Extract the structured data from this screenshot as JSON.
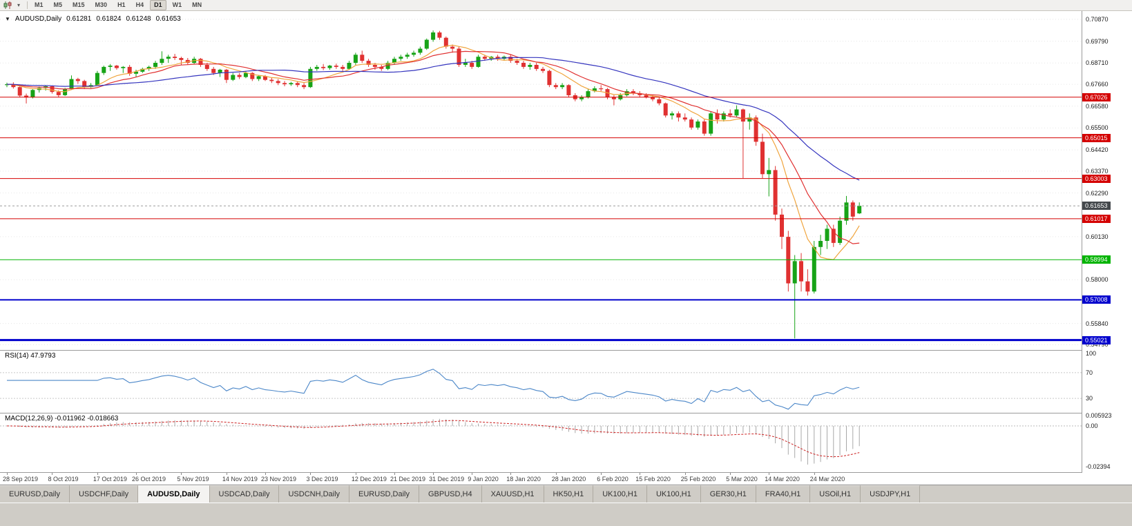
{
  "toolbar": {
    "timeframes": [
      "M1",
      "M5",
      "M15",
      "M30",
      "H1",
      "H4",
      "D1",
      "W1",
      "MN"
    ],
    "active_timeframe": "D1"
  },
  "chart": {
    "symbol_label": "AUDUSD,Daily",
    "ohlc": {
      "open": "0.61281",
      "high": "0.61824",
      "low": "0.61248",
      "close": "0.61653"
    }
  },
  "chart_data": {
    "type": "candlestick",
    "symbol": "AUDUSD",
    "timeframe": "Daily",
    "title": "AUDUSD,Daily 0.61281 0.61824 0.61248 0.61653",
    "price_range": {
      "top": 0.71279,
      "bottom": 0.54531
    },
    "y_ticks": [
      "0.70870",
      "0.69790",
      "0.68710",
      "0.67660",
      "0.66580",
      "0.65500",
      "0.64420",
      "0.63370",
      "0.62290",
      "0.60130",
      "0.58000",
      "0.55840",
      "0.54790"
    ],
    "current_price": {
      "value": 0.61653,
      "label": "0.61653",
      "color": "#44484c"
    },
    "hlines": [
      {
        "price": 0.67026,
        "label": "0.67026",
        "color": "#d40000",
        "width": 1
      },
      {
        "price": 0.65015,
        "label": "0.65015",
        "color": "#d40000",
        "width": 1
      },
      {
        "price": 0.63003,
        "label": "0.63003",
        "color": "#d40000",
        "width": 1
      },
      {
        "price": 0.61017,
        "label": "0.61017",
        "color": "#d40000",
        "width": 1
      },
      {
        "price": 0.58994,
        "label": "0.58994",
        "color": "#00b400",
        "width": 1
      },
      {
        "price": 0.57008,
        "label": "0.57008",
        "color": "#0000cd",
        "width": 2
      },
      {
        "price": 0.55021,
        "label": "0.55021",
        "color": "#0000cd",
        "width": 3
      }
    ],
    "date_labels": [
      {
        "label": "28 Sep 2019",
        "i": 0
      },
      {
        "label": "8 Oct 2019",
        "i": 7
      },
      {
        "label": "17 Oct 2019",
        "i": 14
      },
      {
        "label": "26 Oct 2019",
        "i": 20
      },
      {
        "label": "5 Nov 2019",
        "i": 27
      },
      {
        "label": "14 Nov 2019",
        "i": 34
      },
      {
        "label": "23 Nov 2019",
        "i": 40
      },
      {
        "label": "3 Dec 2019",
        "i": 47
      },
      {
        "label": "12 Dec 2019",
        "i": 54
      },
      {
        "label": "21 Dec 2019",
        "i": 60
      },
      {
        "label": "31 Dec 2019",
        "i": 66
      },
      {
        "label": "9 Jan 2020",
        "i": 72
      },
      {
        "label": "18 Jan 2020",
        "i": 78
      },
      {
        "label": "28 Jan 2020",
        "i": 85
      },
      {
        "label": "6 Feb 2020",
        "i": 92
      },
      {
        "label": "15 Feb 2020",
        "i": 98
      },
      {
        "label": "25 Feb 2020",
        "i": 105
      },
      {
        "label": "5 Mar 2020",
        "i": 112
      },
      {
        "label": "14 Mar 2020",
        "i": 118
      },
      {
        "label": "24 Mar 2020",
        "i": 125
      }
    ],
    "candles": [
      [
        0.6762,
        0.6774,
        0.6752,
        0.6766
      ],
      [
        0.6766,
        0.6776,
        0.6745,
        0.6752
      ],
      [
        0.6752,
        0.6758,
        0.6702,
        0.671
      ],
      [
        0.671,
        0.672,
        0.6671,
        0.6701
      ],
      [
        0.6701,
        0.6742,
        0.6696,
        0.6738
      ],
      [
        0.6738,
        0.6755,
        0.6725,
        0.6748
      ],
      [
        0.6748,
        0.6762,
        0.6735,
        0.6756
      ],
      [
        0.6756,
        0.676,
        0.672,
        0.6728
      ],
      [
        0.6728,
        0.6736,
        0.6702,
        0.6712
      ],
      [
        0.6712,
        0.6748,
        0.6708,
        0.6742
      ],
      [
        0.6742,
        0.681,
        0.6738,
        0.6792
      ],
      [
        0.6792,
        0.6798,
        0.6768,
        0.6782
      ],
      [
        0.6782,
        0.6788,
        0.6742,
        0.6752
      ],
      [
        0.6752,
        0.6772,
        0.6748,
        0.6762
      ],
      [
        0.6762,
        0.6832,
        0.6758,
        0.6822
      ],
      [
        0.6822,
        0.6858,
        0.6812,
        0.6852
      ],
      [
        0.6852,
        0.6866,
        0.6832,
        0.6858
      ],
      [
        0.6858,
        0.6862,
        0.6838,
        0.6846
      ],
      [
        0.6846,
        0.6856,
        0.6822,
        0.6852
      ],
      [
        0.6852,
        0.6862,
        0.6808,
        0.6818
      ],
      [
        0.6818,
        0.6838,
        0.6802,
        0.6828
      ],
      [
        0.6828,
        0.6848,
        0.6822,
        0.6842
      ],
      [
        0.6842,
        0.6858,
        0.6832,
        0.6852
      ],
      [
        0.6852,
        0.6882,
        0.6842,
        0.6872
      ],
      [
        0.6872,
        0.6929,
        0.6862,
        0.6892
      ],
      [
        0.6892,
        0.6912,
        0.6872,
        0.6902
      ],
      [
        0.6902,
        0.6916,
        0.6886,
        0.6896
      ],
      [
        0.6896,
        0.6902,
        0.6862,
        0.6886
      ],
      [
        0.6886,
        0.6896,
        0.6862,
        0.6872
      ],
      [
        0.6872,
        0.6902,
        0.6866,
        0.6892
      ],
      [
        0.6892,
        0.6896,
        0.6852,
        0.6862
      ],
      [
        0.6862,
        0.6872,
        0.6832,
        0.6842
      ],
      [
        0.6842,
        0.6852,
        0.6812,
        0.6822
      ],
      [
        0.6822,
        0.6842,
        0.6802,
        0.6838
      ],
      [
        0.6838,
        0.6842,
        0.6772,
        0.6788
      ],
      [
        0.6788,
        0.6822,
        0.6782,
        0.6812
      ],
      [
        0.6812,
        0.6822,
        0.6792,
        0.6802
      ],
      [
        0.6802,
        0.6832,
        0.6796,
        0.6822
      ],
      [
        0.6822,
        0.6826,
        0.6782,
        0.6792
      ],
      [
        0.6792,
        0.6812,
        0.6782,
        0.6806
      ],
      [
        0.6806,
        0.6812,
        0.6782,
        0.6788
      ],
      [
        0.6788,
        0.6798,
        0.6772,
        0.6782
      ],
      [
        0.6782,
        0.6792,
        0.6762,
        0.6772
      ],
      [
        0.6772,
        0.6782,
        0.6756,
        0.6766
      ],
      [
        0.6766,
        0.6778,
        0.6758,
        0.6772
      ],
      [
        0.6772,
        0.6782,
        0.6752,
        0.6762
      ],
      [
        0.6762,
        0.6772,
        0.6742,
        0.6752
      ],
      [
        0.6752,
        0.6852,
        0.6748,
        0.6842
      ],
      [
        0.6842,
        0.6862,
        0.6832,
        0.6852
      ],
      [
        0.6852,
        0.6866,
        0.6836,
        0.6846
      ],
      [
        0.6846,
        0.6862,
        0.6838,
        0.6858
      ],
      [
        0.6858,
        0.6868,
        0.6842,
        0.6852
      ],
      [
        0.6852,
        0.6862,
        0.6832,
        0.6842
      ],
      [
        0.6842,
        0.6882,
        0.6838,
        0.6872
      ],
      [
        0.6872,
        0.6922,
        0.6862,
        0.6912
      ],
      [
        0.6912,
        0.6932,
        0.6872,
        0.6882
      ],
      [
        0.6882,
        0.6892,
        0.6852,
        0.6862
      ],
      [
        0.6862,
        0.6872,
        0.6838,
        0.6852
      ],
      [
        0.6852,
        0.6862,
        0.6832,
        0.6842
      ],
      [
        0.6842,
        0.6882,
        0.6836,
        0.6872
      ],
      [
        0.6872,
        0.6902,
        0.6862,
        0.6892
      ],
      [
        0.6892,
        0.6912,
        0.6882,
        0.6902
      ],
      [
        0.6902,
        0.6922,
        0.6892,
        0.6912
      ],
      [
        0.6912,
        0.6932,
        0.6902,
        0.6922
      ],
      [
        0.6922,
        0.6952,
        0.6912,
        0.6942
      ],
      [
        0.6942,
        0.6992,
        0.6936,
        0.6986
      ],
      [
        0.6986,
        0.7032,
        0.6976,
        0.7022
      ],
      [
        0.7022,
        0.703,
        0.6986,
        0.6996
      ],
      [
        0.6996,
        0.7002,
        0.6942,
        0.6952
      ],
      [
        0.6952,
        0.6962,
        0.6922,
        0.6942
      ],
      [
        0.6942,
        0.6952,
        0.6852,
        0.6862
      ],
      [
        0.6862,
        0.6892,
        0.6852,
        0.6872
      ],
      [
        0.6872,
        0.6882,
        0.6842,
        0.6852
      ],
      [
        0.6852,
        0.6912,
        0.6848,
        0.6902
      ],
      [
        0.6902,
        0.6912,
        0.6882,
        0.6892
      ],
      [
        0.6892,
        0.6906,
        0.6882,
        0.6902
      ],
      [
        0.6902,
        0.6912,
        0.6882,
        0.6892
      ],
      [
        0.6892,
        0.6908,
        0.6886,
        0.6902
      ],
      [
        0.6902,
        0.6912,
        0.6872,
        0.6882
      ],
      [
        0.6882,
        0.6892,
        0.6862,
        0.6872
      ],
      [
        0.6872,
        0.6882,
        0.6842,
        0.6852
      ],
      [
        0.6852,
        0.6872,
        0.6838,
        0.6862
      ],
      [
        0.6862,
        0.6872,
        0.6832,
        0.6842
      ],
      [
        0.6842,
        0.6852,
        0.6822,
        0.6832
      ],
      [
        0.6832,
        0.6838,
        0.6752,
        0.6762
      ],
      [
        0.6762,
        0.6772,
        0.6742,
        0.6752
      ],
      [
        0.6752,
        0.6772,
        0.6742,
        0.6762
      ],
      [
        0.6762,
        0.6766,
        0.6702,
        0.6712
      ],
      [
        0.6712,
        0.6722,
        0.6682,
        0.6692
      ],
      [
        0.6692,
        0.6712,
        0.6682,
        0.6702
      ],
      [
        0.6702,
        0.6742,
        0.6696,
        0.6732
      ],
      [
        0.6732,
        0.6756,
        0.6726,
        0.6746
      ],
      [
        0.6746,
        0.6762,
        0.6732,
        0.6742
      ],
      [
        0.6742,
        0.6748,
        0.6692,
        0.6702
      ],
      [
        0.6702,
        0.6712,
        0.6662,
        0.6692
      ],
      [
        0.6692,
        0.6722,
        0.6686,
        0.6712
      ],
      [
        0.6712,
        0.6742,
        0.6706,
        0.6732
      ],
      [
        0.6732,
        0.6742,
        0.6712,
        0.6722
      ],
      [
        0.6722,
        0.6732,
        0.6702,
        0.6712
      ],
      [
        0.6712,
        0.6722,
        0.6696,
        0.6702
      ],
      [
        0.6702,
        0.6712,
        0.6682,
        0.6692
      ],
      [
        0.6692,
        0.6702,
        0.6662,
        0.6672
      ],
      [
        0.6672,
        0.6676,
        0.6602,
        0.6612
      ],
      [
        0.6612,
        0.6632,
        0.6592,
        0.6622
      ],
      [
        0.6622,
        0.6632,
        0.6582,
        0.6602
      ],
      [
        0.6602,
        0.6622,
        0.6582,
        0.6592
      ],
      [
        0.6592,
        0.6602,
        0.6542,
        0.6552
      ],
      [
        0.6552,
        0.6592,
        0.6542,
        0.6582
      ],
      [
        0.6582,
        0.6592,
        0.6512,
        0.6522
      ],
      [
        0.6522,
        0.6632,
        0.6512,
        0.6622
      ],
      [
        0.6622,
        0.6642,
        0.6572,
        0.6592
      ],
      [
        0.6592,
        0.6632,
        0.6582,
        0.6622
      ],
      [
        0.6622,
        0.6642,
        0.6602,
        0.6612
      ],
      [
        0.6612,
        0.6662,
        0.6602,
        0.6642
      ],
      [
        0.6642,
        0.6646,
        0.6302,
        0.6582
      ],
      [
        0.6582,
        0.6622,
        0.6542,
        0.6602
      ],
      [
        0.6602,
        0.6612,
        0.6462,
        0.6482
      ],
      [
        0.6482,
        0.6522,
        0.6302,
        0.6322
      ],
      [
        0.6322,
        0.6402,
        0.6212,
        0.6342
      ],
      [
        0.6342,
        0.6362,
        0.6092,
        0.6122
      ],
      [
        0.6122,
        0.6152,
        0.5952,
        0.6012
      ],
      [
        0.6012,
        0.6042,
        0.5742,
        0.5782
      ],
      [
        0.5782,
        0.5922,
        0.551,
        0.5892
      ],
      [
        0.5892,
        0.5932,
        0.5742,
        0.5792
      ],
      [
        0.5792,
        0.5852,
        0.5722,
        0.5742
      ],
      [
        0.5742,
        0.5992,
        0.5732,
        0.5962
      ],
      [
        0.5962,
        0.6022,
        0.5922,
        0.5992
      ],
      [
        0.5992,
        0.6072,
        0.5952,
        0.6052
      ],
      [
        0.6052,
        0.6072,
        0.5962,
        0.5982
      ],
      [
        0.5982,
        0.6112,
        0.5972,
        0.6092
      ],
      [
        0.6092,
        0.6214,
        0.6072,
        0.6182
      ],
      [
        0.6182,
        0.6192,
        0.6092,
        0.6112
      ],
      [
        0.61281,
        0.61824,
        0.61248,
        0.61653
      ]
    ],
    "moving_averages": [
      {
        "period": 8,
        "color": "#f0a43c"
      },
      {
        "period": 13,
        "color": "#e03030"
      },
      {
        "period": 30,
        "color": "#3434be"
      }
    ],
    "rsi": {
      "label": "RSI(14) 47.9793",
      "period": 14,
      "value": 47.9793,
      "levels": [
        70,
        30
      ],
      "y_ticks": [
        "100",
        "70",
        "30"
      ],
      "color": "#4a86c8"
    },
    "macd": {
      "label": "MACD(12,26,9) -0.011962 -0.018663",
      "fast": 12,
      "slow": 26,
      "signal_period": 9,
      "values": [
        "-0.011962",
        "-0.018663"
      ],
      "y_ticks": [
        "0.005923",
        "0.00",
        "-0.02394"
      ],
      "bar_color": "#a8a8a8",
      "signal_color": "#cc2020"
    },
    "colors": {
      "up": "#17a317",
      "down": "#e03131",
      "grid": "#e6e6e6"
    }
  },
  "tabs": {
    "active_index": 2,
    "items": [
      "EURUSD,Daily",
      "USDCHF,Daily",
      "AUDUSD,Daily",
      "USDCAD,Daily",
      "USDCNH,Daily",
      "EURUSD,Daily",
      "GBPUSD,H4",
      "XAUUSD,H1",
      "HK50,H1",
      "UK100,H1",
      "UK100,H1",
      "GER30,H1",
      "FRA40,H1",
      "USOil,H1",
      "USDJPY,H1"
    ]
  }
}
